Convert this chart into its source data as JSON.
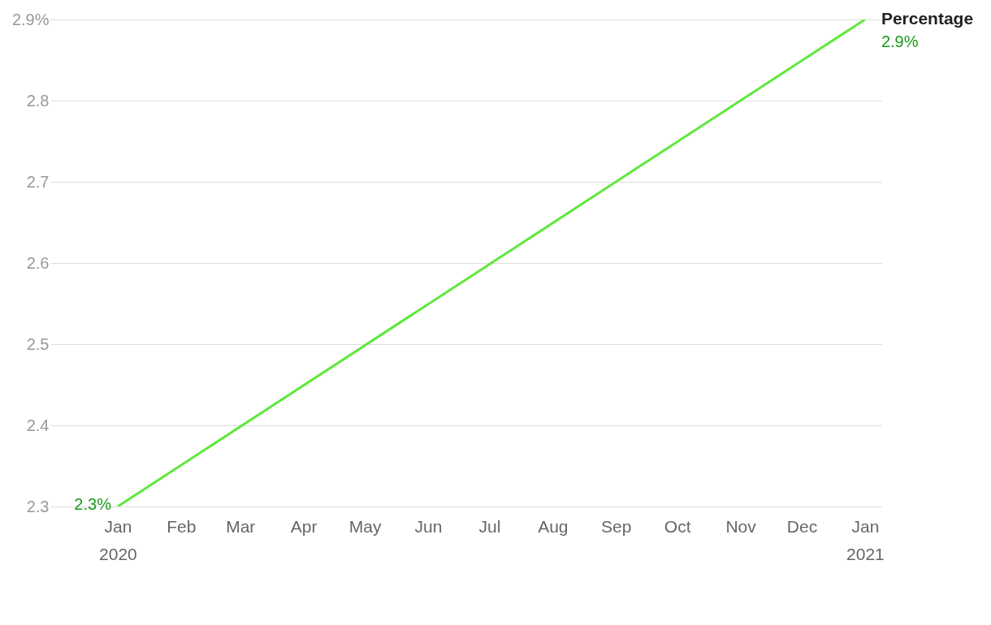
{
  "chart_data": {
    "type": "line",
    "x": [
      "2020-01",
      "2021-01"
    ],
    "series": [
      {
        "name": "Percentage",
        "color": "#5ee83a",
        "values": [
          2.3,
          2.9
        ],
        "value_labels": [
          "2.3%",
          "2.9%"
        ]
      }
    ],
    "xlim": [
      "2019-11-29",
      "2021-01-09"
    ],
    "xticks": [
      {
        "value": "2020-01",
        "label": "Jan 2020"
      },
      {
        "value": "2020-02",
        "label": "Feb"
      },
      {
        "value": "2020-03",
        "label": "Mar"
      },
      {
        "value": "2020-04",
        "label": "Apr"
      },
      {
        "value": "2020-05",
        "label": "May"
      },
      {
        "value": "2020-06",
        "label": "Jun"
      },
      {
        "value": "2020-07",
        "label": "Jul"
      },
      {
        "value": "2020-08",
        "label": "Aug"
      },
      {
        "value": "2020-09",
        "label": "Sep"
      },
      {
        "value": "2020-10",
        "label": "Oct"
      },
      {
        "value": "2020-11",
        "label": "Nov"
      },
      {
        "value": "2020-12",
        "label": "Dec"
      },
      {
        "value": "2021-01",
        "label": "Jan 2021"
      }
    ],
    "ylim": [
      2.3,
      2.9
    ],
    "yticks": [
      2.3,
      2.4,
      2.5,
      2.6,
      2.7,
      2.8,
      {
        "value": 2.9,
        "label": "2.9%"
      }
    ],
    "grid": "y",
    "marker": "none",
    "line_style": "solid"
  }
}
